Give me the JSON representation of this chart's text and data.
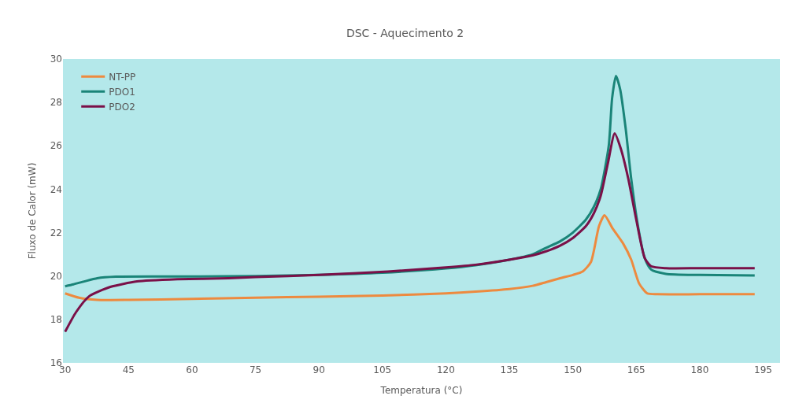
{
  "chart_data": {
    "type": "line",
    "title": "DSC - Aquecimento 2",
    "xlabel": "Temperatura (°C)",
    "ylabel": "Fluxo de Calor (mW)",
    "xlim": [
      29.5,
      199
    ],
    "xticks": [
      30,
      45,
      60,
      75,
      90,
      105,
      120,
      135,
      150,
      165,
      180,
      195
    ],
    "ylim": [
      16,
      30
    ],
    "yticks": [
      16,
      18,
      20,
      22,
      24,
      26,
      28,
      30
    ],
    "grid": false,
    "legend": "top left",
    "marker": "none",
    "line_style": "solid",
    "series": [
      {
        "name": "NT-PP",
        "color": "#ed8a3f",
        "x": [
          30,
          33.3,
          37.6,
          45,
          60,
          75,
          90,
          105,
          120,
          127,
          135,
          140.5,
          143.7,
          147,
          150,
          152.4,
          154.3,
          156.2,
          157.5,
          159.4,
          161.9,
          163.8,
          165.7,
          167.6,
          170,
          180,
          193
        ],
        "values": [
          19.2,
          19.0,
          18.9,
          18.9,
          18.95,
          19.0,
          19.05,
          19.1,
          19.2,
          19.28,
          19.4,
          19.55,
          19.72,
          19.9,
          20.05,
          20.22,
          20.65,
          22.3,
          22.8,
          22.2,
          21.5,
          20.76,
          19.65,
          19.2,
          19.16,
          19.16,
          19.16
        ]
      },
      {
        "name": "PDO1",
        "color": "#1a8478",
        "x": [
          30,
          32,
          34.5,
          37.6,
          42,
          60,
          75,
          90,
          105,
          120,
          127,
          135,
          140.5,
          143.7,
          147,
          150,
          153.1,
          155,
          156.6,
          158.5,
          159.3,
          160.2,
          161.2,
          162.5,
          163.8,
          165.5,
          167,
          168.5,
          172,
          180,
          193
        ],
        "values": [
          19.53,
          19.62,
          19.75,
          19.9,
          19.97,
          19.98,
          20.0,
          20.05,
          20.15,
          20.35,
          20.5,
          20.75,
          21.0,
          21.3,
          21.6,
          22.0,
          22.6,
          23.2,
          24.0,
          26.0,
          28.2,
          29.22,
          28.6,
          26.8,
          24.5,
          22.2,
          20.83,
          20.3,
          20.1,
          20.05,
          20.03
        ]
      },
      {
        "name": "PDO2",
        "color": "#7a1048",
        "x": [
          30,
          32.6,
          35.7,
          40.7,
          47,
          56.5,
          68.6,
          75,
          90,
          106.3,
          120,
          127,
          135,
          140.5,
          143.7,
          147,
          150,
          153.1,
          155,
          156.6,
          158.3,
          159.9,
          161.3,
          163.1,
          165,
          167,
          168.5,
          172,
          180,
          193
        ],
        "values": [
          17.43,
          18.34,
          19.07,
          19.5,
          19.75,
          19.85,
          19.9,
          19.95,
          20.05,
          20.21,
          20.4,
          20.52,
          20.75,
          20.95,
          21.14,
          21.4,
          21.75,
          22.3,
          22.9,
          23.7,
          25.2,
          26.57,
          25.9,
          24.5,
          22.6,
          20.83,
          20.45,
          20.36,
          20.36,
          20.36
        ]
      }
    ]
  }
}
